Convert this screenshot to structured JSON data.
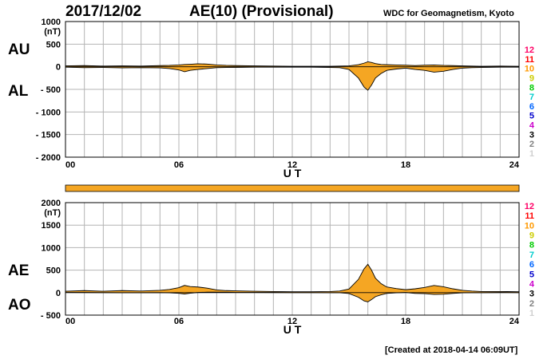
{
  "header": {
    "date": "2017/12/02",
    "title": "AE(10) (Provisional)",
    "source": "WDC for Geomagnetism, Kyoto"
  },
  "footer": {
    "created": "[Created at 2018-04-14 06:09UT]"
  },
  "colors": {
    "fill": "#f5a623",
    "line": "#000000",
    "grid": "#b4b4b4",
    "station_colors": [
      "#d0d0d0",
      "#808080",
      "#000000",
      "#cc00cc",
      "#0000cc",
      "#0066ff",
      "#00cccc",
      "#00cc00",
      "#cccc00",
      "#ff9900",
      "#ff0000",
      "#ff0066"
    ]
  },
  "station_counts": [
    "12",
    "11",
    "10",
    "9",
    "8",
    "7",
    "6",
    "5",
    "4",
    "3",
    "2",
    "1"
  ],
  "chart_data": [
    {
      "type": "area",
      "panel": "AU/AL",
      "series_labels": {
        "upper": "AU",
        "lower": "AL"
      },
      "unit_label": "(nT)",
      "xlabel": "U T",
      "xlim": [
        0,
        24
      ],
      "xticks": [
        "00",
        "06",
        "12",
        "18",
        "24"
      ],
      "ylim": [
        -2000,
        1000
      ],
      "yticks": [
        "1000",
        "500",
        "0",
        "- 500",
        "- 1000",
        "- 1500",
        "- 2000"
      ],
      "ytick_values": [
        1000,
        500,
        0,
        -500,
        -1000,
        -1500,
        -2000
      ],
      "x": [
        0,
        1,
        2,
        3,
        4,
        5,
        5.5,
        6,
        6.3,
        6.6,
        7,
        7.5,
        8,
        8.5,
        9,
        10,
        11,
        12,
        13,
        14,
        14.5,
        15,
        15.5,
        15.8,
        16,
        16.2,
        16.4,
        16.7,
        17,
        17.5,
        18,
        18.5,
        19,
        19.5,
        20,
        20.5,
        21,
        21.5,
        22,
        23,
        24
      ],
      "AU": [
        20,
        25,
        15,
        20,
        15,
        25,
        30,
        40,
        50,
        55,
        65,
        60,
        40,
        30,
        25,
        20,
        15,
        10,
        10,
        10,
        15,
        20,
        45,
        80,
        110,
        95,
        70,
        50,
        45,
        40,
        35,
        25,
        35,
        40,
        30,
        25,
        20,
        15,
        10,
        15,
        10
      ],
      "AL": [
        -10,
        -20,
        -15,
        -25,
        -20,
        -25,
        -40,
        -70,
        -110,
        -80,
        -60,
        -40,
        -20,
        -15,
        -15,
        -10,
        -10,
        -10,
        -10,
        -15,
        -20,
        -60,
        -250,
        -450,
        -520,
        -400,
        -250,
        -150,
        -80,
        -50,
        -30,
        -60,
        -80,
        -120,
        -100,
        -60,
        -30,
        -20,
        -15,
        -10,
        -10
      ]
    },
    {
      "type": "area",
      "panel": "AE/AO",
      "series_labels": {
        "upper": "AE",
        "lower": "AO"
      },
      "unit_label": "(nT)",
      "xlabel": "U T",
      "xlim": [
        0,
        24
      ],
      "xticks": [
        "00",
        "06",
        "12",
        "18",
        "24"
      ],
      "ylim": [
        -500,
        2000
      ],
      "yticks": [
        "2000",
        "1500",
        "1000",
        "500",
        "0",
        "- 500"
      ],
      "ytick_values": [
        2000,
        1500,
        1000,
        500,
        0,
        -500
      ],
      "x": [
        0,
        1,
        2,
        3,
        4,
        5,
        5.5,
        6,
        6.3,
        6.6,
        7,
        7.5,
        8,
        8.5,
        9,
        10,
        11,
        12,
        13,
        14,
        14.5,
        15,
        15.5,
        15.8,
        16,
        16.2,
        16.4,
        16.7,
        17,
        17.5,
        18,
        18.5,
        19,
        19.5,
        20,
        20.5,
        21,
        21.5,
        22,
        23,
        24
      ],
      "AE": [
        30,
        45,
        30,
        45,
        35,
        50,
        70,
        110,
        160,
        135,
        125,
        100,
        60,
        45,
        40,
        30,
        25,
        20,
        20,
        25,
        35,
        80,
        295,
        530,
        630,
        495,
        320,
        200,
        125,
        90,
        65,
        85,
        115,
        160,
        130,
        85,
        50,
        35,
        25,
        25,
        20
      ],
      "AO": [
        5,
        3,
        0,
        -3,
        -3,
        0,
        -5,
        -15,
        -30,
        -13,
        3,
        10,
        10,
        8,
        5,
        5,
        3,
        0,
        0,
        -3,
        -3,
        -20,
        -103,
        -185,
        -205,
        -153,
        -90,
        -50,
        -18,
        -5,
        3,
        -18,
        -23,
        -40,
        -35,
        -18,
        -5,
        -3,
        -3,
        3,
        0
      ]
    }
  ]
}
